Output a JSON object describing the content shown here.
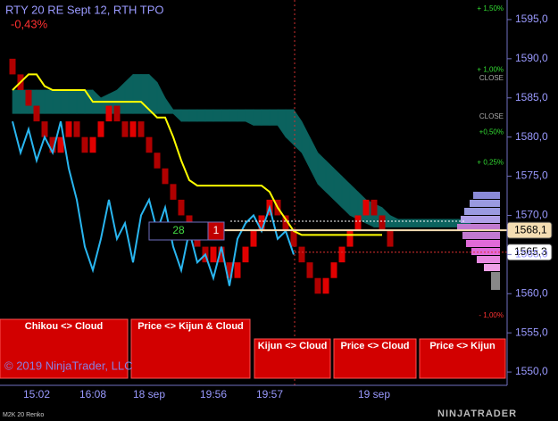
{
  "chart_data": {
    "type": "renko",
    "title": "RTY 20 RE Sept 12, RTH TPO",
    "change": "-0,43%",
    "categories": [
      null,
      null,
      null,
      "15:02",
      null,
      null,
      null,
      null,
      null,
      null,
      "16:08",
      null,
      null,
      null,
      null,
      null,
      null,
      "18 sep",
      null,
      null,
      null,
      null,
      null,
      null,
      null,
      "19:56",
      null,
      null,
      null,
      null,
      null,
      null,
      "19:57",
      null,
      null,
      null,
      null,
      null,
      null,
      null,
      null,
      null,
      null,
      null,
      null,
      "19 sep",
      null,
      null,
      null,
      null,
      null,
      null,
      null,
      null,
      null,
      null,
      null,
      null
    ],
    "ylim": [
      1548.3,
      1597.5
    ],
    "yticks": [
      {
        "value": 1550,
        "label": "1550,0"
      },
      {
        "value": 1555,
        "label": "1555,0"
      },
      {
        "value": 1560,
        "label": "1560,0"
      },
      {
        "value": 1565,
        "label": "1565,0"
      },
      {
        "value": 1570,
        "label": "1570,0"
      },
      {
        "value": 1575,
        "label": "1575,0"
      },
      {
        "value": 1580,
        "label": "1580,0"
      },
      {
        "value": 1585,
        "label": "1585,0"
      },
      {
        "value": 1590,
        "label": "1590,0"
      },
      {
        "value": 1595,
        "label": "1595,0"
      }
    ],
    "bricks": {
      "open": 1590,
      "up_color": "#e10000",
      "down_color": "#b00000",
      "close": [
        1588,
        1586,
        1584,
        1582,
        1580,
        1578,
        1580,
        1582,
        1580,
        1578,
        1580,
        1582,
        1584,
        1582,
        1580,
        1582,
        1580,
        1578,
        1576,
        1574,
        1572,
        1570,
        1568,
        1566,
        1564,
        1566,
        1564,
        1562,
        1564,
        1566,
        1568,
        1570,
        1572,
        1570,
        1568,
        1566,
        1564,
        1562,
        1560,
        1562,
        1564,
        1566,
        1568,
        1570,
        1572,
        1570,
        1568,
        1566
      ]
    },
    "cloud": {
      "color": "#0b625e",
      "upper": [
        1586,
        1586,
        1586,
        1586,
        1586,
        1586,
        1586,
        1586,
        1586,
        1586,
        1586,
        1585,
        1585.5,
        1586,
        1587,
        1588,
        1588,
        1588,
        1587,
        1585,
        1583.5,
        1583.5,
        1583.5,
        1583.5,
        1583.5,
        1583.5,
        1583.5,
        1583.5,
        1583.5,
        1583.5,
        1583.5,
        1583.5,
        1583.5,
        1583.5,
        1583.5,
        1583.5,
        1582,
        1580,
        1578,
        1577,
        1576,
        1575,
        1574,
        1573,
        1572,
        1571.5,
        1571,
        1570,
        1569.5,
        1569.5,
        1569.5,
        1569.5,
        1569.5,
        1569.5,
        1569.5,
        1569.5,
        1569.5,
        1569.5
      ],
      "lower": [
        1583,
        1583,
        1583,
        1583,
        1583,
        1583,
        1583,
        1583,
        1583,
        1583,
        1583,
        1583,
        1583,
        1583,
        1583,
        1583,
        1583,
        1583,
        1583,
        1583,
        1583,
        1582,
        1582,
        1582,
        1582,
        1582,
        1582,
        1582,
        1582,
        1582,
        1581.5,
        1581.5,
        1581.5,
        1581.5,
        1580,
        1579,
        1578,
        1576,
        1574,
        1573,
        1572,
        1571,
        1570,
        1569.5,
        1569,
        1568.5,
        1568.5,
        1568.5,
        1568.5,
        1568.5,
        1568.5,
        1568.5,
        1568.5,
        1568.5,
        1568.5,
        1568.5,
        1568.5,
        1568.5
      ]
    },
    "series": [
      {
        "color": "#ffff00",
        "values": [
          1586,
          1587,
          1588,
          1588,
          1586.5,
          1586,
          1586,
          1586,
          1586,
          1586,
          1584.5,
          1584.5,
          1584.5,
          1584.5,
          1584.5,
          1584.5,
          1584.5,
          1583.5,
          1582.5,
          1582.5,
          1580,
          1577,
          1574.5,
          1573.8,
          1573.8,
          1573.8,
          1573.8,
          1573.8,
          1573.8,
          1573.8,
          1573.8,
          1573.8,
          1573,
          1571,
          1569.5,
          1568,
          1567.5,
          1567.5,
          1567.5,
          1567.5,
          1567.5,
          1567.5,
          1567.5,
          1567.5,
          1567.5,
          1567.5,
          1567.5,
          null,
          null,
          null,
          null,
          null,
          null,
          null,
          null,
          null,
          null,
          null
        ]
      },
      {
        "color": "#29b6f0",
        "values": [
          1582,
          1578,
          1581,
          1577,
          1580,
          1578,
          1582,
          1576,
          1572,
          1566,
          1563,
          1567,
          1572,
          1567,
          1569,
          1564,
          1570,
          1572,
          1568,
          1571,
          1566,
          1563,
          1568,
          1564,
          1565,
          1562,
          1566,
          1561,
          1567,
          1569,
          1570,
          1568,
          1571,
          1567,
          1568,
          1565,
          null,
          null,
          null,
          null,
          null,
          null,
          null,
          null,
          null,
          null,
          null,
          null,
          null,
          null,
          null,
          null,
          null,
          null,
          null,
          null,
          null,
          null
        ]
      }
    ],
    "price_markers": [
      {
        "value": 1568.1,
        "label": "1568,1",
        "color": "#f5deb3"
      },
      {
        "value": 1565.3,
        "label": "1565,3",
        "color": "#e03030"
      }
    ],
    "annotations": [
      {
        "label": "+ 1,50%",
        "value": 1596.4,
        "color": "#33dd33"
      },
      {
        "label": "+ 1,00%",
        "value": 1588.6,
        "color": "#33dd33"
      },
      {
        "label": "CLOSE",
        "value": 1587.5,
        "color": "#aaaaaa"
      },
      {
        "label": "CLOSE",
        "value": 1582.6,
        "color": "#aaaaaa"
      },
      {
        "label": "+0,50%",
        "value": 1580.6,
        "color": "#33dd33"
      },
      {
        "label": "+ 0,25%",
        "value": 1576.7,
        "color": "#33dd33"
      },
      {
        "label": "- 1,00%",
        "value": 1557.2,
        "color": "#ff3333"
      }
    ],
    "counter": {
      "left": 28,
      "right": 1
    },
    "signals": [
      "Chikou <> Cloud",
      "Price <> Kijun & Cloud",
      "Kijun <> Cloud",
      "Price <> Cloud",
      "Price <> Kijun"
    ],
    "copyright": "© 2019 NinjaTrader, LLC",
    "instrument": "M2K 20 Renko",
    "logo": "NINJATRADER"
  }
}
